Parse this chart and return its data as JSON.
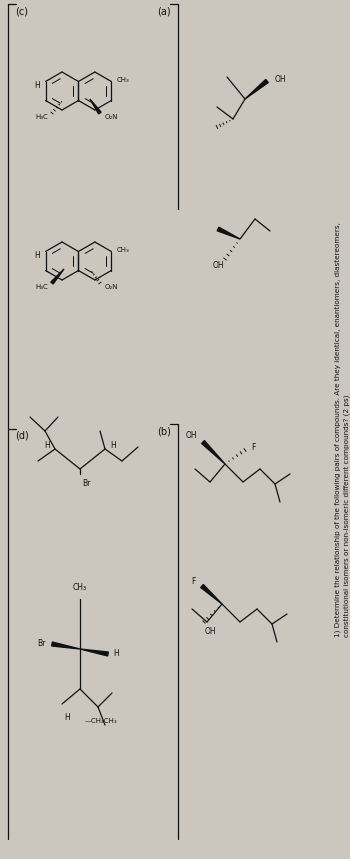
{
  "bg": "#cbc7bf",
  "fg": "#111111",
  "title_line1": "1) Determine the relationship of the following pairs of compounds. Are they identical, enantiomers, diastereomers,",
  "title_line2": "constitutional isomers or non-isomeric different compounds? (2 ps)",
  "label_a": "(a)",
  "label_b": "(b)",
  "label_c": "(c)",
  "label_d": "(d)"
}
